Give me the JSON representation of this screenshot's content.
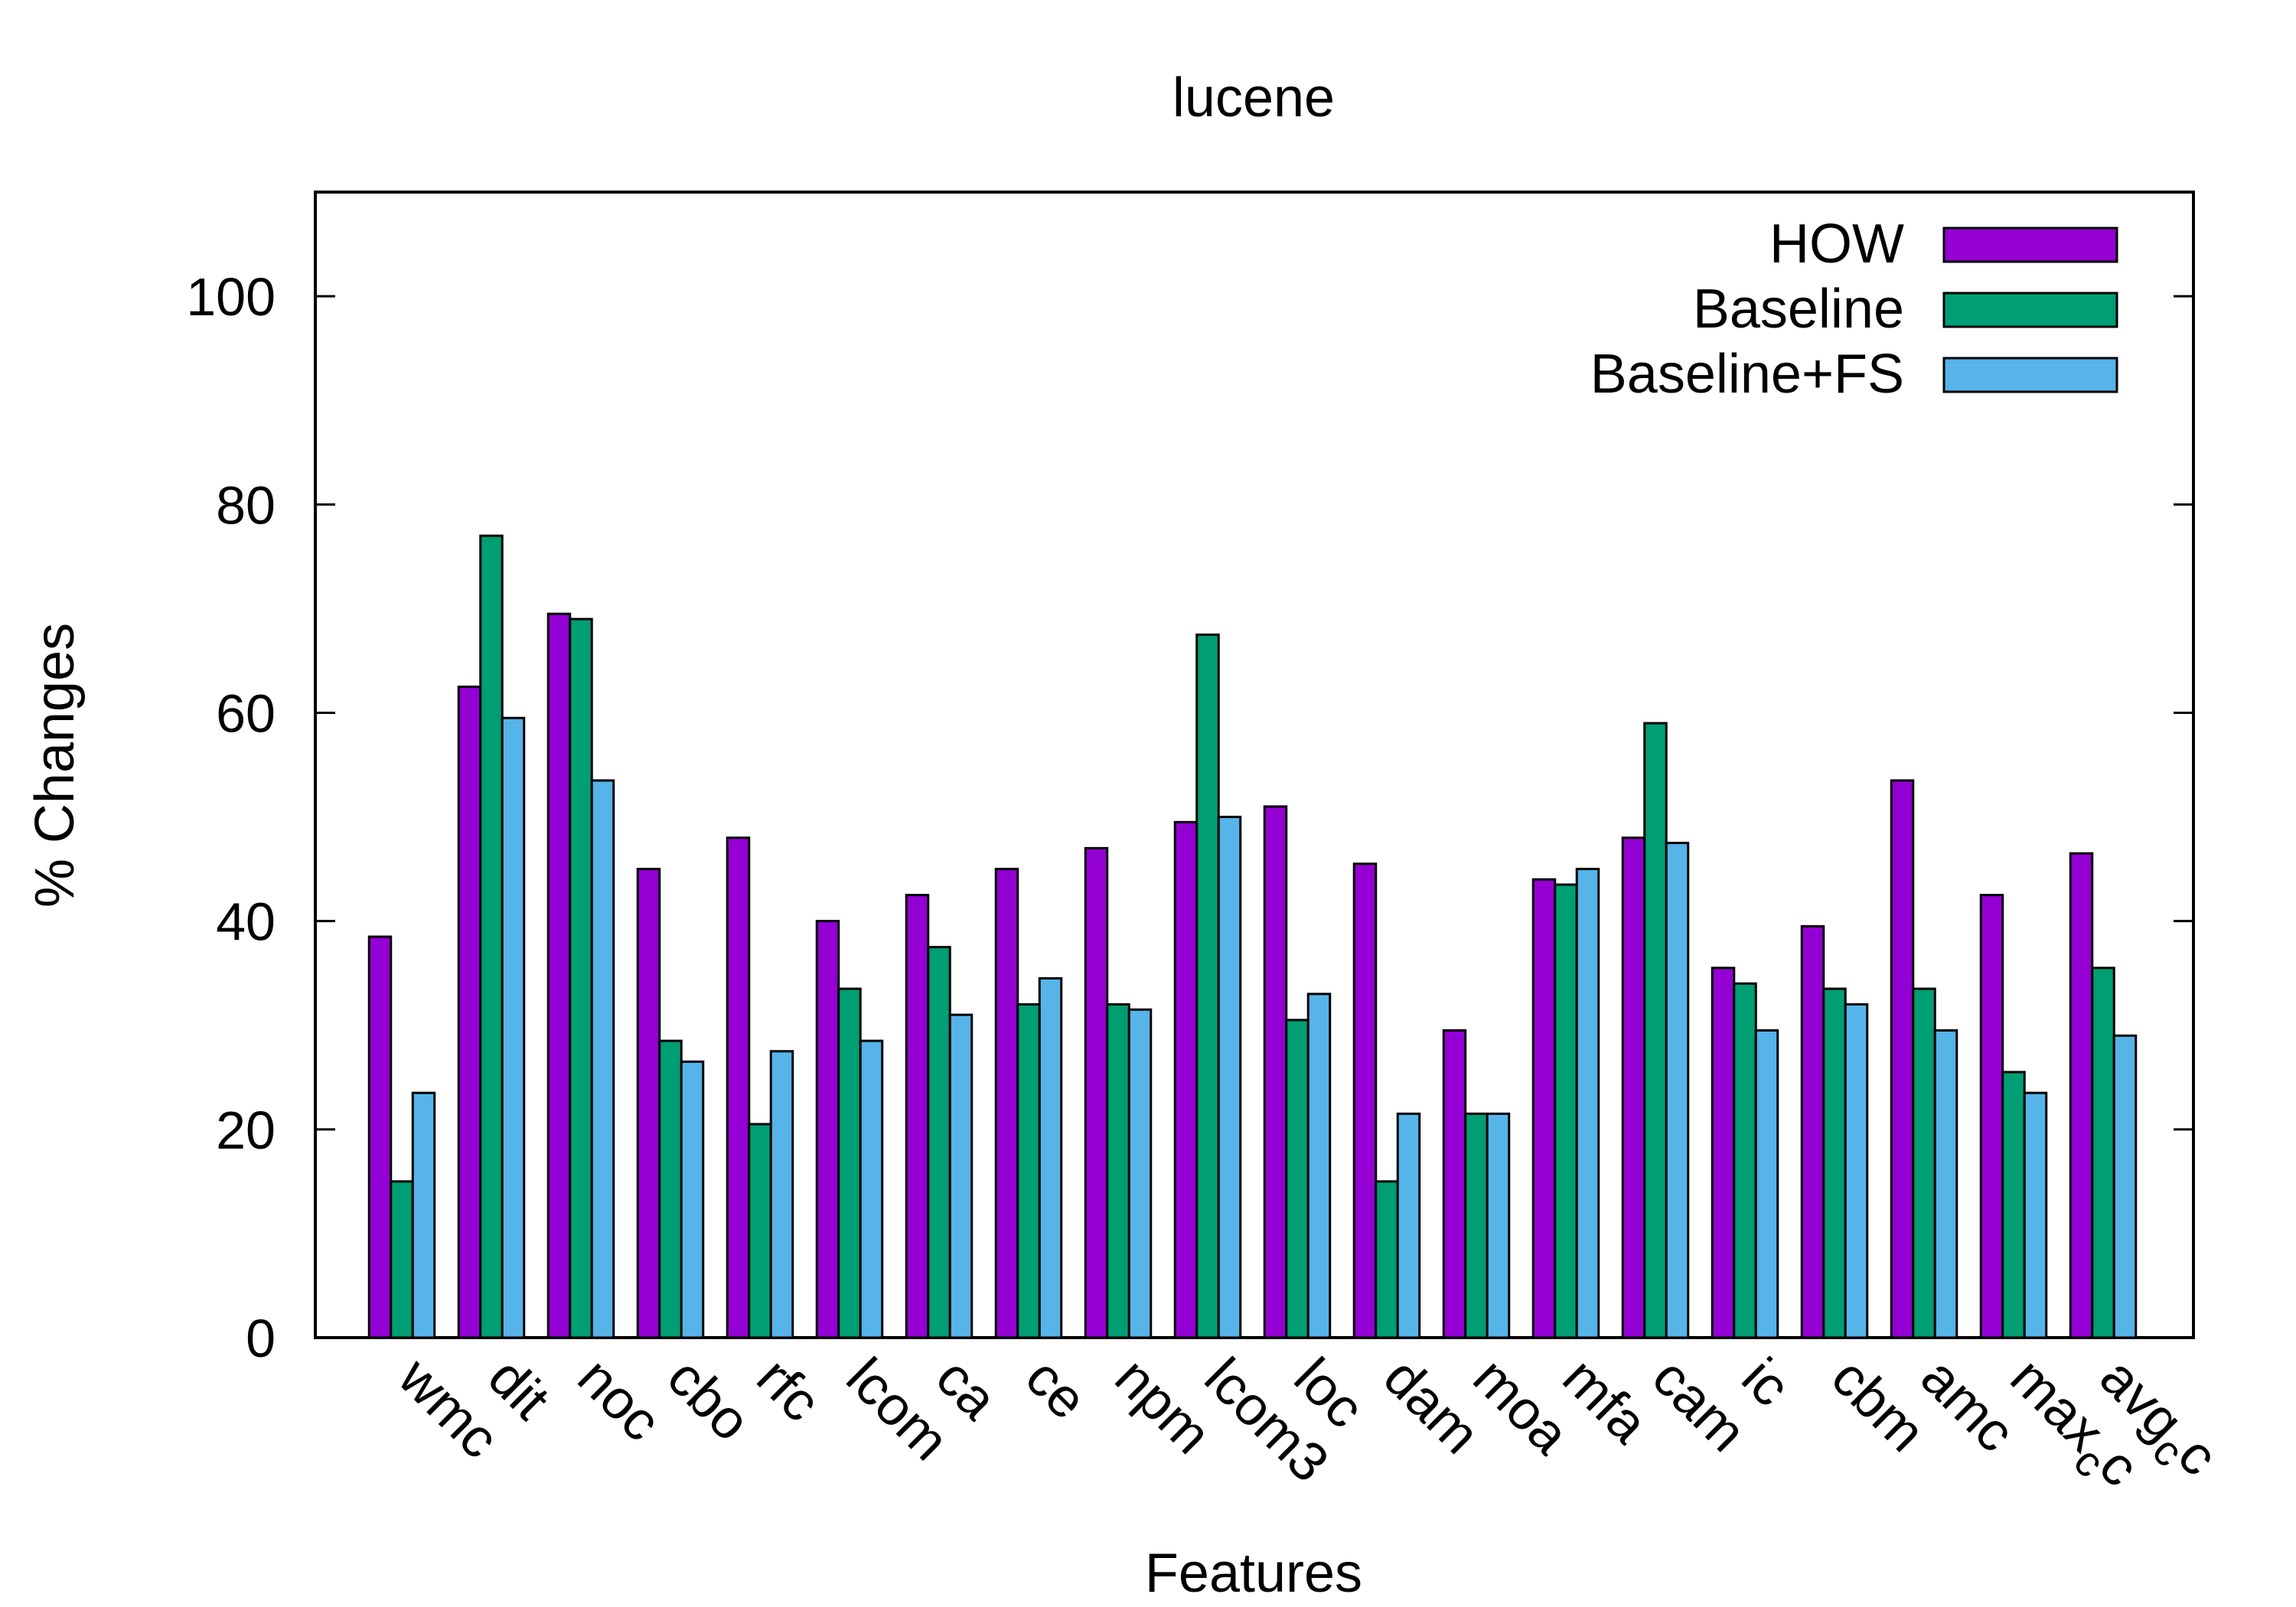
{
  "chart_data": {
    "type": "bar",
    "title": "lucene",
    "xlabel": "Features",
    "ylabel": "% Changes",
    "ylim": [
      0,
      110
    ],
    "yticks": [
      0,
      20,
      40,
      60,
      80,
      100
    ],
    "grid": false,
    "legend_position": "top-right",
    "categories": [
      "wmc",
      "dit",
      "noc",
      "cbo",
      "rfc",
      "lcom",
      "ca",
      "ce",
      "npm",
      "lcom3",
      "loc",
      "dam",
      "moa",
      "mfa",
      "cam",
      "ic",
      "cbm",
      "amc",
      "max_cc",
      "avg_cc"
    ],
    "series": [
      {
        "name": "HOW",
        "color": "#9400d3",
        "values": [
          38.5,
          62.5,
          69.5,
          45,
          48,
          40,
          42.5,
          45,
          47,
          49.5,
          51,
          45.5,
          29.5,
          44,
          48,
          35.5,
          39.5,
          53.5,
          42.5,
          46.5
        ]
      },
      {
        "name": "Baseline",
        "color": "#009e73",
        "values": [
          15,
          77,
          69,
          28.5,
          20.5,
          33.5,
          37.5,
          32,
          32,
          67.5,
          30.5,
          15,
          21.5,
          43.5,
          59,
          34,
          33.5,
          33.5,
          25.5,
          35.5
        ]
      },
      {
        "name": "Baseline+FS",
        "color": "#56b4e9",
        "values": [
          23.5,
          59.5,
          53.5,
          26.5,
          27.5,
          28.5,
          31,
          34.5,
          31.5,
          50,
          33,
          21.5,
          21.5,
          45,
          47.5,
          29.5,
          32,
          29.5,
          23.5,
          29
        ]
      }
    ]
  }
}
